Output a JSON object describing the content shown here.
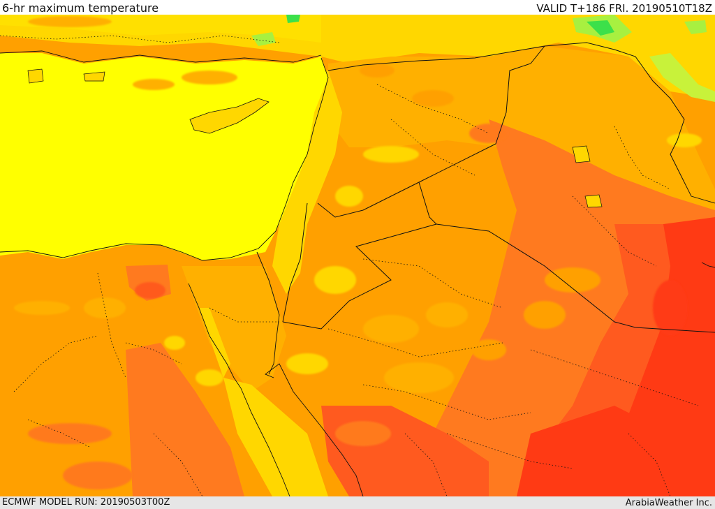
{
  "header": {
    "title": "6-hr maximum temperature",
    "valid": "VALID T+186 FRI. 20190510T18Z"
  },
  "footer": {
    "model_run": "ECMWF MODEL RUN: 20190503T00Z",
    "credit": "ArabiaWeather Inc."
  },
  "map": {
    "type": "temperature-field",
    "palette": {
      "sea": "#ffff00",
      "warm_yellow": "#ffd700",
      "amber": "#ffb000",
      "orange": "#ffa000",
      "deep_orange": "#ff7a1f",
      "hot_orange": "#ff5a1f",
      "red_orange": "#ff3a14",
      "green_light": "#a8f040",
      "green": "#3ce04a",
      "border_color": "#111111"
    }
  }
}
